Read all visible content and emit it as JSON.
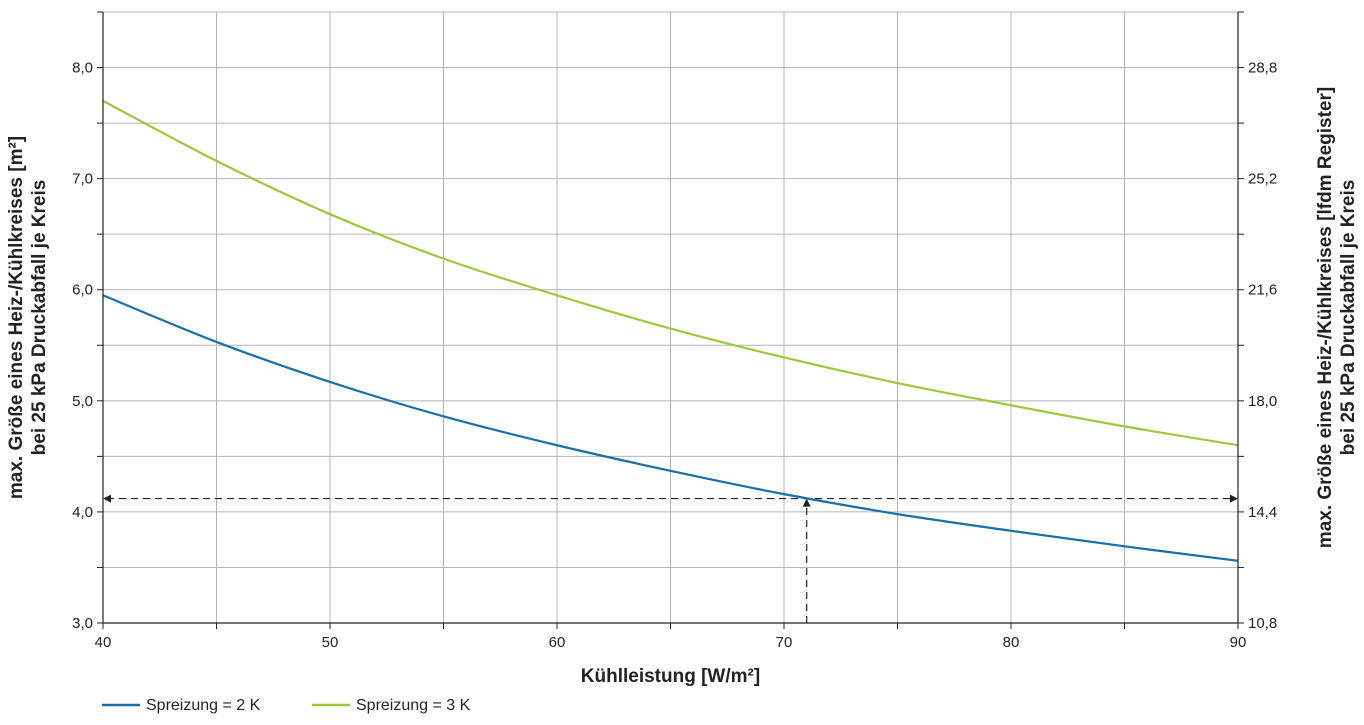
{
  "chart_data": {
    "type": "line",
    "xlabel": "Kühlleistung [W/m²]",
    "ylabel_left": [
      "max. Größe eines Heiz-/Kühlkreises [m²]",
      "bei 25 kPa Druckabfall je Kreis"
    ],
    "ylabel_right": [
      "max. Größe eines Heiz-/Kühlkreises [lfdm Register]",
      "bei 25 kPa Druckabfall je Kreis"
    ],
    "xlim": [
      40,
      90
    ],
    "ylim_left": [
      3.0,
      8.5
    ],
    "ylim_right": [
      10.8,
      30.6
    ],
    "x_ticks": [
      40,
      50,
      60,
      70,
      80,
      90
    ],
    "x_tick_labels": [
      "40",
      "50",
      "60",
      "70",
      "80",
      "90"
    ],
    "y_left_ticks": [
      3.0,
      4.0,
      5.0,
      6.0,
      7.0,
      8.0
    ],
    "y_left_tick_labels": [
      "3,0",
      "4,0",
      "5,0",
      "6,0",
      "7,0",
      "8,0"
    ],
    "y_right_ticks": [
      10.8,
      14.4,
      18.0,
      21.6,
      25.2,
      28.8
    ],
    "y_right_tick_labels": [
      "10,8",
      "14,4",
      "18,0",
      "21,6",
      "25,2",
      "28,8"
    ],
    "grid": true,
    "grid_x_step": 5,
    "grid_y_step": 0.5,
    "legend_position": "bottom-left",
    "x": [
      40,
      45,
      50,
      55,
      60,
      65,
      70,
      75,
      80,
      85,
      90
    ],
    "series": [
      {
        "name": "Spreizung = 2 K",
        "color": "#1a6fab",
        "values": [
          5.95,
          5.53,
          5.17,
          4.86,
          4.6,
          4.37,
          4.16,
          3.98,
          3.83,
          3.69,
          3.56
        ]
      },
      {
        "name": "Spreizung = 3 K",
        "color": "#9cc83c",
        "values": [
          7.7,
          7.16,
          6.68,
          6.28,
          5.95,
          5.65,
          5.39,
          5.16,
          4.96,
          4.77,
          4.6
        ]
      }
    ],
    "reference_point": {
      "x": 71,
      "y": 4.12
    }
  }
}
